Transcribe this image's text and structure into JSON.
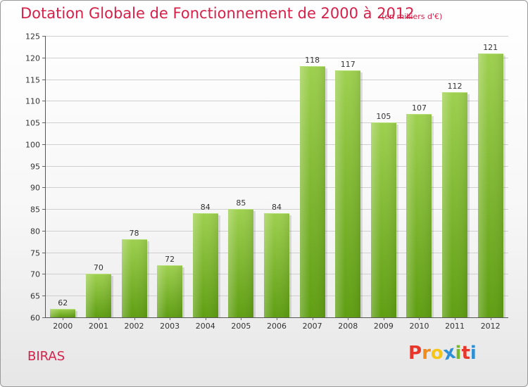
{
  "header": {
    "title": "Dotation Globale de Fonctionnement de 2000 à 2012",
    "subtitle": "(en milliers d'€)"
  },
  "footer": {
    "commune": "BIRAS",
    "logo_letters": [
      "P",
      "r",
      "o",
      "x",
      "i",
      "t",
      "i"
    ]
  },
  "colors": {
    "accent": "#d6204a",
    "bar_top": "#9ed04f",
    "bar_bottom": "#5f9e12",
    "grid": "#d0d0d0",
    "logo": [
      "#e8362a",
      "#f08b1d",
      "#f5c518",
      "#2f8fd6",
      "#7ab72b",
      "#e8362a",
      "#2f8fd6"
    ]
  },
  "chart_data": {
    "type": "bar",
    "title": "Dotation Globale de Fonctionnement de 2000 à 2012",
    "subtitle": "(en milliers d'€)",
    "xlabel": "",
    "ylabel": "",
    "categories": [
      "2000",
      "2001",
      "2002",
      "2003",
      "2004",
      "2005",
      "2006",
      "2007",
      "2008",
      "2009",
      "2010",
      "2011",
      "2012"
    ],
    "values": [
      62,
      70,
      78,
      72,
      84,
      85,
      84,
      118,
      117,
      105,
      107,
      112,
      121
    ],
    "value_labels": [
      "62",
      "70",
      "78",
      "72",
      "84",
      "85",
      "84",
      "118",
      "117",
      "105",
      "107",
      "112",
      "121"
    ],
    "ylim": [
      60,
      125
    ],
    "yticks": [
      60,
      65,
      70,
      75,
      80,
      85,
      90,
      95,
      100,
      105,
      110,
      115,
      120,
      125
    ],
    "grid": true
  }
}
